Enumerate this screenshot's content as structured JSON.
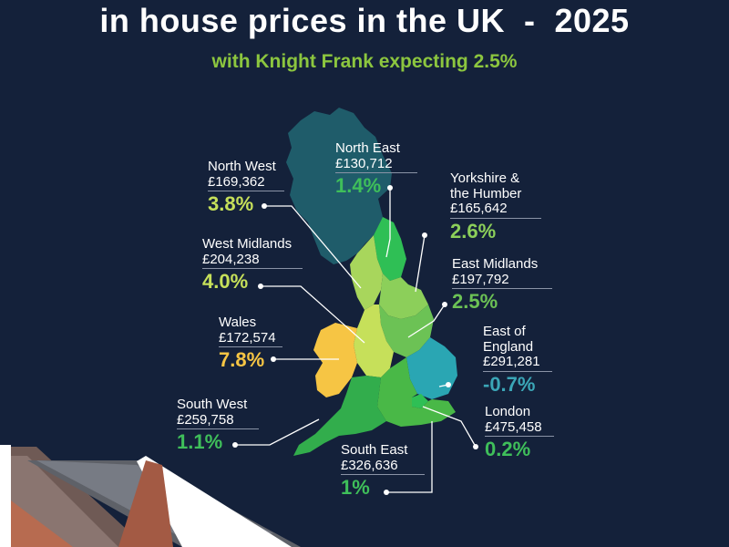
{
  "title": "in house prices in the UK  -  2025",
  "subtitle": "with Knight Frank expecting 2.5%",
  "colors": {
    "background": "#14213a",
    "scotland": "#1f5c6a",
    "title": "#ffffff",
    "subtitle": "#8cc63f",
    "green_pct": "#3fbf5a",
    "yellow_pct": "#f6c544",
    "teal_pct": "#3ba6b7",
    "lime_pct": "#c6e05a"
  },
  "regions": [
    {
      "id": "north-west",
      "name": "North West",
      "price": "£169,362",
      "change": "3.8%"
    },
    {
      "id": "north-east",
      "name": "North East",
      "price": "£130,712",
      "change": "1.4%"
    },
    {
      "id": "yorkshire",
      "name": "Yorkshire &\nthe Humber",
      "price": "£165,642",
      "change": "2.6%"
    },
    {
      "id": "west-midlands",
      "name": "West Midlands",
      "price": "£204,238",
      "change": "4.0%"
    },
    {
      "id": "east-midlands",
      "name": "East Midlands",
      "price": "£197,792",
      "change": "2.5%"
    },
    {
      "id": "wales",
      "name": "Wales",
      "price": "£172,574",
      "change": "7.8%"
    },
    {
      "id": "east-of-england",
      "name": "East of\nEngland",
      "price": "£291,281",
      "change": "-0.7%"
    },
    {
      "id": "south-west",
      "name": "South West",
      "price": "£259,758",
      "change": "1.1%"
    },
    {
      "id": "london",
      "name": "London",
      "price": "£475,458",
      "change": "0.2%"
    },
    {
      "id": "south-east",
      "name": "South East",
      "price": "£326,636",
      "change": "1%"
    }
  ]
}
